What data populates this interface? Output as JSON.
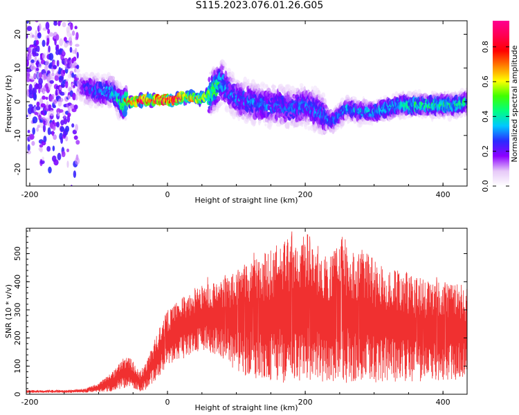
{
  "title": "S115.2023.076.01.26.G05",
  "colors": {
    "snr_line": "#f03030",
    "axis": "#000000",
    "background": "#ffffff"
  },
  "chart_data": [
    {
      "type": "heatmap",
      "xlabel": "Height of straight line (km)",
      "ylabel": "Frequency (Hz)",
      "xlim": [
        -205,
        435
      ],
      "ylim": [
        -25,
        24
      ],
      "x_ticks": [
        "-200",
        "0",
        "200",
        "400"
      ],
      "x_tick_values": [
        -200,
        0,
        200,
        400
      ],
      "y_ticks": [
        "-20",
        "-10",
        "0",
        "10",
        "20"
      ],
      "y_tick_values": [
        -20,
        -10,
        0,
        10,
        20
      ],
      "colorbar": {
        "label": "Normalized spectral amplitude",
        "range": [
          0,
          0.95
        ],
        "ticks": [
          "0.0",
          "0.2",
          "0.4",
          "0.6",
          "0.8"
        ],
        "tick_values": [
          0.0,
          0.2,
          0.4,
          0.6,
          0.8
        ],
        "colors": [
          "#ffffff",
          "#e6c8f8",
          "#8c00ff",
          "#2a2aff",
          "#00c8ff",
          "#00ff80",
          "#40ff00",
          "#ffff00",
          "#ff8000",
          "#ff0000",
          "#ff0050",
          "#ff0090"
        ]
      },
      "ridge": {
        "x": [
          -205,
          -130,
          -120,
          -100,
          -80,
          -65,
          -60,
          -50,
          -40,
          -30,
          -20,
          -10,
          0,
          10,
          20,
          30,
          40,
          50,
          60,
          70,
          75,
          80,
          90,
          100,
          120,
          140,
          160,
          180,
          200,
          220,
          240,
          260,
          280,
          300,
          320,
          340,
          360,
          380,
          400,
          420,
          435
        ],
        "y": [
          5,
          5,
          4,
          3,
          3,
          -1,
          0,
          0,
          0.5,
          0.5,
          0.5,
          0.5,
          0.5,
          0.5,
          1,
          1.5,
          1,
          1,
          2,
          4,
          5,
          6,
          3,
          1,
          0,
          -1,
          -1,
          -2,
          -1,
          -3,
          -6,
          -2,
          -3,
          -3,
          -2,
          -1,
          -1,
          -1,
          -1,
          -1,
          0
        ],
        "amplitude": [
          0.1,
          0.1,
          0.25,
          0.3,
          0.35,
          0.45,
          0.7,
          0.85,
          0.95,
          0.9,
          0.85,
          0.9,
          0.9,
          0.95,
          0.9,
          0.75,
          0.7,
          0.6,
          0.55,
          0.5,
          0.45,
          0.4,
          0.3,
          0.3,
          0.3,
          0.3,
          0.3,
          0.3,
          0.3,
          0.3,
          0.3,
          0.35,
          0.35,
          0.35,
          0.4,
          0.4,
          0.45,
          0.45,
          0.45,
          0.45,
          0.45
        ]
      }
    },
    {
      "type": "line",
      "xlabel": "Height of straight line (km)",
      "ylabel": "SNR (10 * v/v)",
      "xlim": [
        -205,
        435
      ],
      "ylim": [
        0,
        590
      ],
      "x_ticks": [
        "-200",
        "0",
        "200",
        "400"
      ],
      "x_tick_values": [
        -200,
        0,
        200,
        400
      ],
      "y_ticks": [
        "0",
        "100",
        "200",
        "300",
        "400",
        "500"
      ],
      "y_tick_values": [
        0,
        100,
        200,
        300,
        400,
        500
      ],
      "envelope": {
        "x": [
          -205,
          -150,
          -120,
          -100,
          -80,
          -60,
          -50,
          -40,
          -30,
          -20,
          0,
          20,
          40,
          60,
          80,
          100,
          120,
          140,
          160,
          180,
          200,
          220,
          240,
          260,
          280,
          300,
          320,
          340,
          360,
          380,
          400,
          420,
          435
        ],
        "low": [
          5,
          5,
          5,
          8,
          10,
          20,
          20,
          10,
          15,
          40,
          100,
          120,
          150,
          150,
          130,
          80,
          60,
          50,
          40,
          40,
          40,
          40,
          40,
          40,
          40,
          40,
          40,
          40,
          40,
          50,
          50,
          50,
          60
        ],
        "high": [
          15,
          15,
          20,
          40,
          80,
          140,
          120,
          80,
          120,
          190,
          300,
          340,
          380,
          400,
          420,
          440,
          470,
          510,
          540,
          560,
          560,
          500,
          520,
          540,
          520,
          480,
          450,
          440,
          420,
          400,
          400,
          400,
          380
        ]
      }
    }
  ]
}
